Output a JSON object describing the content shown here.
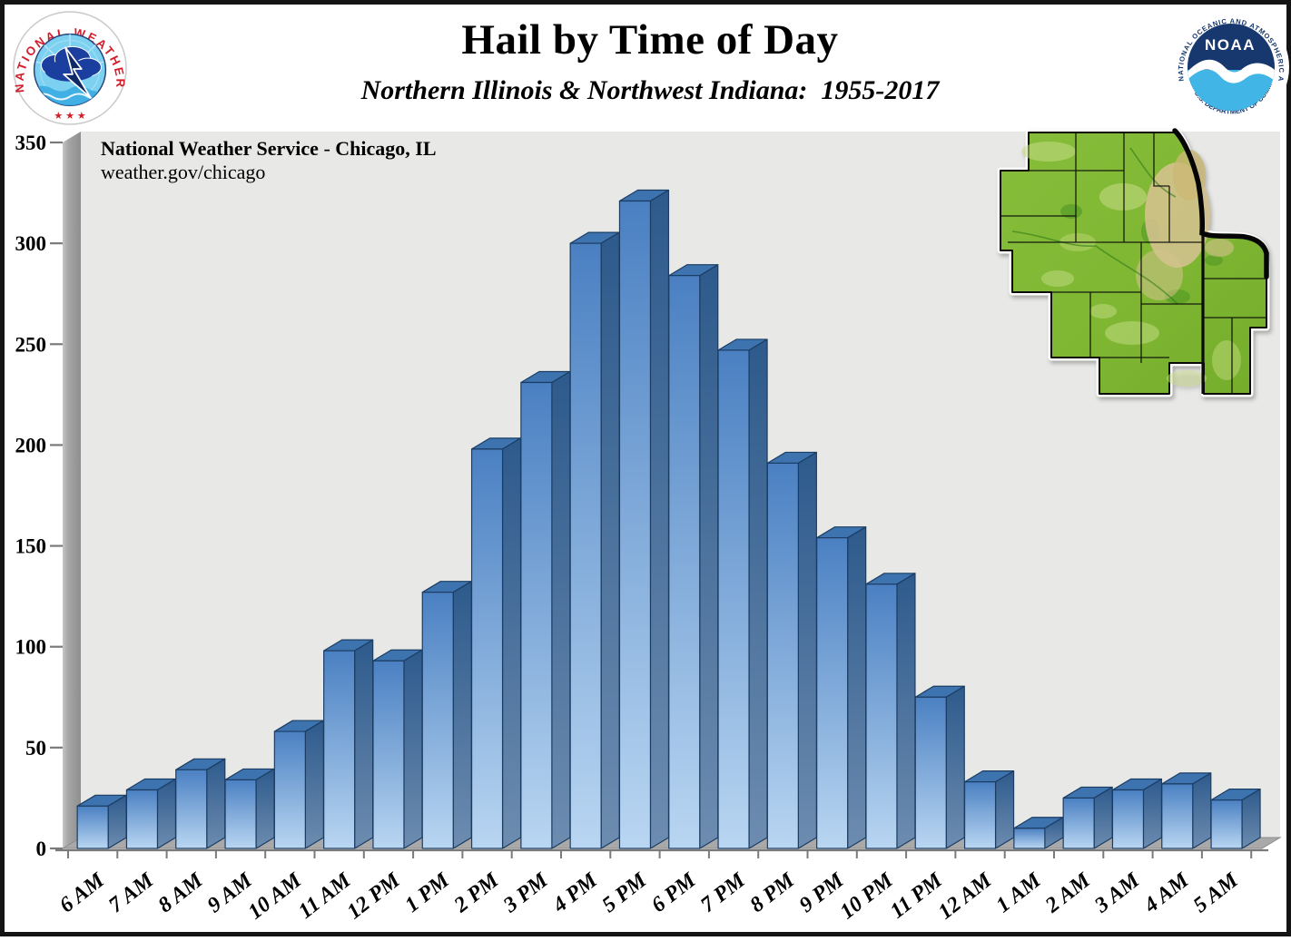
{
  "header": {
    "title": "Hail by Time of Day",
    "subtitle": "Northern Illinois & Northwest Indiana:  1955-2017"
  },
  "annotation": {
    "line1_office": "National Weather Service",
    "line1_sep": " - ",
    "line1_city": "Chicago, IL",
    "line2_url": "weather.gov/chicago"
  },
  "logos": {
    "nws": {
      "ring_text": "NATIONAL WEATHER SERVICE",
      "stars": "★ ★ ★",
      "ring_color": "#d21e2b"
    },
    "noaa": {
      "label": "NOAA",
      "ring_top": "NATIONAL OCEANIC AND ATMOSPHERIC ADMINISTRATION",
      "ring_bottom": "U.S. DEPARTMENT OF COMMERCE",
      "navy": "#16386e",
      "light_blue": "#41b6e6"
    }
  },
  "chart_data": {
    "type": "bar",
    "style": "3d-column",
    "title": "Hail by Time of Day",
    "subtitle": "Northern Illinois & Northwest Indiana: 1955-2017",
    "xlabel": "",
    "ylabel": "",
    "categories": [
      "6 AM",
      "7 AM",
      "8 AM",
      "9 AM",
      "10 AM",
      "11 AM",
      "12 PM",
      "1 PM",
      "2 PM",
      "3 PM",
      "4 PM",
      "5 PM",
      "6 PM",
      "7 PM",
      "8 PM",
      "9 PM",
      "10 PM",
      "11 PM",
      "12 AM",
      "1 AM",
      "2 AM",
      "3 AM",
      "4 AM",
      "5 AM"
    ],
    "values": [
      21,
      29,
      39,
      34,
      58,
      98,
      93,
      127,
      198,
      231,
      300,
      321,
      284,
      247,
      191,
      154,
      131,
      75,
      33,
      10,
      25,
      29,
      32,
      24
    ],
    "ylim": [
      0,
      350
    ],
    "yticks": [
      0,
      50,
      100,
      150,
      200,
      250,
      300,
      350
    ],
    "grid": false,
    "legend": "none",
    "colors": {
      "bar_front_top": "#4a80c2",
      "bar_front_bottom": "#b9d6f2",
      "bar_side_top": "#2d5a8c",
      "bar_side_bottom": "#6d8cb0",
      "bar_top_face": "#3d74b0",
      "bar_outline": "#1c3d63",
      "plot_background": "#e8e8e6",
      "wall_gray": "#9a9a9a",
      "floor_gray": "#a9a9a9",
      "axis_gray": "#7a7a7a"
    }
  },
  "map": {
    "name": "NWS Chicago county warning area",
    "land_green": "#7fb733",
    "urban_tan": "#d4c28e",
    "border_black": "#0a0a0a"
  }
}
